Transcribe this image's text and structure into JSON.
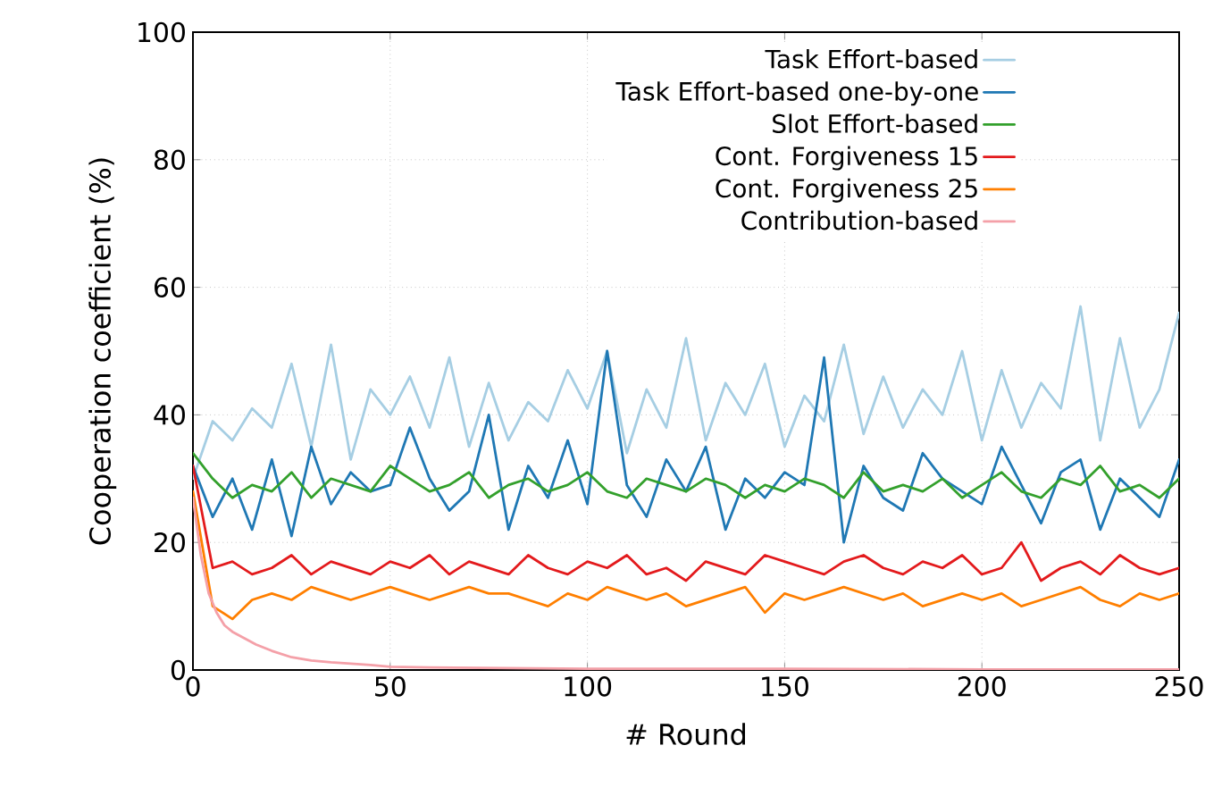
{
  "chart_data": {
    "type": "line",
    "xlabel": "# Round",
    "ylabel": "Cooperation coefficient (%)",
    "x": [
      0,
      5,
      10,
      15,
      20,
      25,
      30,
      35,
      40,
      45,
      50,
      55,
      60,
      65,
      70,
      75,
      80,
      85,
      90,
      95,
      100,
      105,
      110,
      115,
      120,
      125,
      130,
      135,
      140,
      145,
      150,
      155,
      160,
      165,
      170,
      175,
      180,
      185,
      190,
      195,
      200,
      205,
      210,
      215,
      220,
      225,
      230,
      235,
      240,
      245,
      250
    ],
    "series": [
      {
        "name": "Task Effort-based",
        "color": "#a6cee3",
        "values": [
          30,
          39,
          36,
          41,
          38,
          48,
          35,
          51,
          33,
          44,
          40,
          46,
          38,
          49,
          35,
          45,
          36,
          42,
          39,
          47,
          41,
          50,
          34,
          44,
          38,
          52,
          36,
          45,
          40,
          48,
          35,
          43,
          39,
          51,
          37,
          46,
          38,
          44,
          40,
          50,
          36,
          47,
          38,
          45,
          41,
          57,
          36,
          52,
          38,
          44,
          56
        ]
      },
      {
        "name": "Task Effort-based one-by-one",
        "color": "#1f78b4",
        "values": [
          32,
          24,
          30,
          22,
          33,
          21,
          35,
          26,
          31,
          28,
          29,
          38,
          30,
          25,
          28,
          40,
          22,
          32,
          27,
          36,
          26,
          50,
          29,
          24,
          33,
          28,
          35,
          22,
          30,
          27,
          31,
          29,
          49,
          20,
          32,
          27,
          25,
          34,
          30,
          28,
          26,
          35,
          29,
          23,
          31,
          33,
          22,
          30,
          27,
          24,
          33
        ]
      },
      {
        "name": "Slot Effort-based",
        "color": "#33a02c",
        "values": [
          34,
          30,
          27,
          29,
          28,
          31,
          27,
          30,
          29,
          28,
          32,
          30,
          28,
          29,
          31,
          27,
          29,
          30,
          28,
          29,
          31,
          28,
          27,
          30,
          29,
          28,
          30,
          29,
          27,
          29,
          28,
          30,
          29,
          27,
          31,
          28,
          29,
          28,
          30,
          27,
          29,
          31,
          28,
          27,
          30,
          29,
          32,
          28,
          29,
          27,
          30
        ]
      },
      {
        "name": "Cont. Forgiveness 15",
        "color": "#e31a1c",
        "values": [
          32,
          16,
          17,
          15,
          16,
          18,
          15,
          17,
          16,
          15,
          17,
          16,
          18,
          15,
          17,
          16,
          15,
          18,
          16,
          15,
          17,
          16,
          18,
          15,
          16,
          14,
          17,
          16,
          15,
          18,
          17,
          16,
          15,
          17,
          18,
          16,
          15,
          17,
          16,
          18,
          15,
          16,
          20,
          14,
          16,
          17,
          15,
          18,
          16,
          15,
          16
        ]
      },
      {
        "name": "Cont. Forgiveness 25",
        "color": "#ff7f00",
        "values": [
          28,
          10,
          8,
          11,
          12,
          11,
          13,
          12,
          11,
          12,
          13,
          12,
          11,
          12,
          13,
          12,
          12,
          11,
          10,
          12,
          11,
          13,
          12,
          11,
          12,
          10,
          11,
          12,
          13,
          9,
          12,
          11,
          12,
          13,
          12,
          11,
          12,
          10,
          11,
          12,
          11,
          12,
          10,
          11,
          12,
          13,
          11,
          10,
          12,
          11,
          12
        ]
      },
      {
        "name": "Contribution-based",
        "color": "#f4a0a8",
        "x": [
          0,
          2,
          4,
          6,
          8,
          10,
          13,
          16,
          20,
          25,
          30,
          35,
          40,
          45,
          50,
          60,
          80,
          100,
          150,
          200,
          250
        ],
        "values": [
          27,
          18,
          12,
          9,
          7,
          6,
          5,
          4,
          3,
          2,
          1.5,
          1.2,
          1,
          0.8,
          0.5,
          0.4,
          0.3,
          0.2,
          0.2,
          0.1,
          0.1
        ]
      }
    ],
    "xlim": [
      0,
      250
    ],
    "ylim": [
      0,
      100
    ],
    "xticks": [
      0,
      50,
      100,
      150,
      200,
      250
    ],
    "yticks": [
      0,
      20,
      40,
      60,
      80,
      100
    ],
    "grid": true,
    "legend": "top right",
    "marker": "none",
    "line_style": "solid"
  }
}
